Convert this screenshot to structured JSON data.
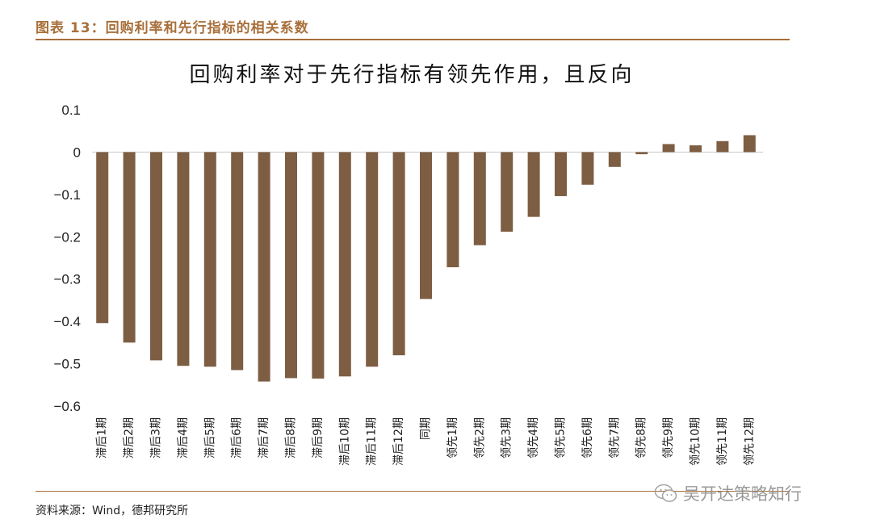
{
  "figure": {
    "label": "图表 13：回购利率和先行指标的相关系数",
    "source": "资料来源：Wind，德邦研究所",
    "watermark": "吴开达策略知行",
    "watermark_icon": "wechat-icon"
  },
  "chart_data": {
    "type": "bar",
    "title": "回购利率对于先行指标有领先作用，且反向",
    "xlabel": "",
    "ylabel": "",
    "ylim": [
      -0.6,
      0.1
    ],
    "yticks": [
      0.1,
      0,
      -0.1,
      -0.2,
      -0.3,
      -0.4,
      -0.5,
      -0.6
    ],
    "ytick_labels": [
      "0.1",
      "0",
      "−0.1",
      "−0.2",
      "−0.3",
      "−0.4",
      "−0.5",
      "−0.6"
    ],
    "grid": false,
    "bar_color": "#7d5e43",
    "categories": [
      "滞后1期",
      "滞后2期",
      "滞后3期",
      "滞后4期",
      "滞后5期",
      "滞后6期",
      "滞后7期",
      "滞后8期",
      "滞后9期",
      "滞后10期",
      "滞后11期",
      "滞后12期",
      "同期",
      "领先1期",
      "领先2期",
      "领先3期",
      "领先4期",
      "领先5期",
      "领先6期",
      "领先7期",
      "领先8期",
      "领先9期",
      "领先10期",
      "领先11期",
      "领先12期"
    ],
    "values": [
      -0.404,
      -0.45,
      -0.492,
      -0.505,
      -0.507,
      -0.515,
      -0.542,
      -0.534,
      -0.535,
      -0.53,
      -0.507,
      -0.48,
      -0.347,
      -0.272,
      -0.22,
      -0.188,
      -0.153,
      -0.104,
      -0.077,
      -0.035,
      -0.005,
      0.019,
      0.016,
      0.026,
      0.04
    ]
  }
}
